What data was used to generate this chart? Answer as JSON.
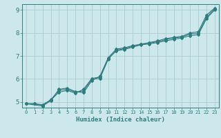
{
  "xlabel": "Humidex (Indice chaleur)",
  "bg_color": "#cce8ec",
  "grid_color": "#aacccc",
  "line_color": "#2e7c7c",
  "xlim": [
    -0.5,
    23.5
  ],
  "ylim": [
    4.75,
    9.25
  ],
  "xticks": [
    0,
    1,
    2,
    3,
    4,
    5,
    6,
    7,
    8,
    9,
    10,
    11,
    12,
    13,
    14,
    15,
    16,
    17,
    18,
    19,
    20,
    21,
    22,
    23
  ],
  "yticks": [
    5,
    6,
    7,
    8,
    9
  ],
  "line1_x": [
    0,
    1,
    2,
    3,
    4,
    5,
    6,
    7,
    8,
    9,
    10,
    11,
    12,
    13,
    14,
    15,
    16,
    17,
    18,
    19,
    20,
    21,
    22,
    23
  ],
  "line1_y": [
    4.92,
    4.92,
    4.88,
    5.08,
    5.42,
    5.5,
    5.38,
    5.55,
    6.02,
    6.08,
    6.88,
    7.22,
    7.28,
    7.38,
    7.48,
    7.52,
    7.58,
    7.65,
    7.72,
    7.78,
    7.88,
    7.92,
    8.62,
    9.0
  ],
  "line2_x": [
    0,
    1,
    2,
    3,
    4,
    5,
    6,
    7,
    8,
    9,
    10,
    11,
    12,
    13,
    14,
    15,
    16,
    17,
    18,
    19,
    20,
    21,
    22,
    23
  ],
  "line2_y": [
    4.92,
    4.92,
    4.85,
    5.1,
    5.5,
    5.55,
    5.42,
    5.48,
    5.98,
    6.02,
    6.85,
    7.25,
    7.32,
    7.42,
    7.52,
    7.55,
    7.62,
    7.7,
    7.78,
    7.82,
    7.95,
    7.98,
    8.68,
    9.05
  ],
  "line3_x": [
    0,
    2,
    3,
    4,
    5,
    6,
    7,
    8,
    9,
    10,
    11,
    12,
    13,
    14,
    15,
    16,
    17,
    18,
    19,
    20,
    21,
    22,
    23
  ],
  "line3_y": [
    4.92,
    4.82,
    5.05,
    5.55,
    5.6,
    5.45,
    5.4,
    5.92,
    6.12,
    6.92,
    7.3,
    7.35,
    7.45,
    7.5,
    7.58,
    7.65,
    7.75,
    7.8,
    7.85,
    8.0,
    8.05,
    8.78,
    9.08
  ]
}
